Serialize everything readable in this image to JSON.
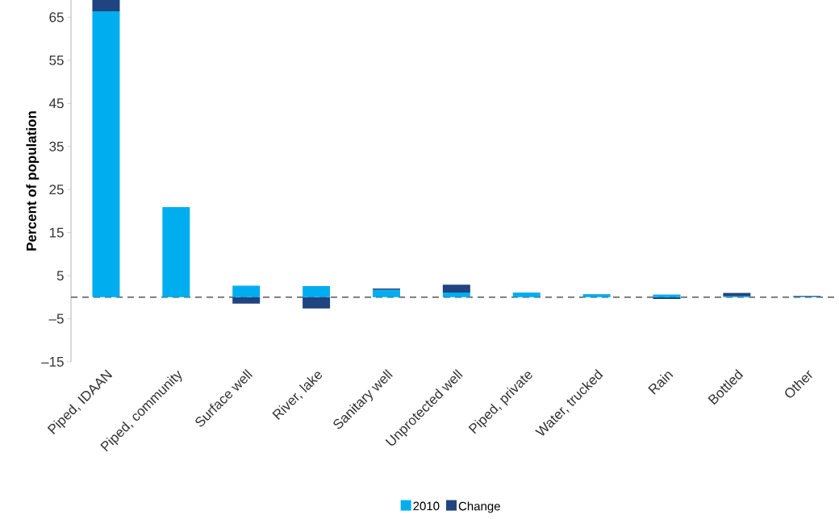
{
  "chart_data": {
    "type": "bar",
    "stacked": true,
    "ylabel": "Percent of population",
    "categories": [
      "Piped, IDAAN",
      "Piped, community",
      "Surface well",
      "River, lake",
      "Sanitary well",
      "Unprotected well",
      "Piped, private",
      "Water, trucked",
      "Rain",
      "Bottled",
      "Other"
    ],
    "series": [
      {
        "name": "2010",
        "color": "#00aeef",
        "values": [
          66.4,
          20.9,
          2.7,
          2.6,
          1.7,
          1.1,
          1.1,
          0.7,
          0.6,
          0.2,
          0.1
        ]
      },
      {
        "name": "Change",
        "color": "#1f4480",
        "values": [
          2.6,
          null,
          -1.5,
          -2.6,
          0.3,
          1.8,
          null,
          null,
          -0.4,
          0.8,
          0.2
        ]
      }
    ],
    "ylim": [
      -15,
      69
    ],
    "yticks": [
      {
        "value": -15,
        "label": "–15"
      },
      {
        "value": -5,
        "label": "–5"
      },
      5,
      15,
      25,
      35,
      45,
      55,
      65
    ],
    "ref_lines": [
      {
        "axis": "y",
        "value": 0,
        "color": "#555555",
        "line_style": "dashed"
      }
    ],
    "legend": "bottom"
  }
}
